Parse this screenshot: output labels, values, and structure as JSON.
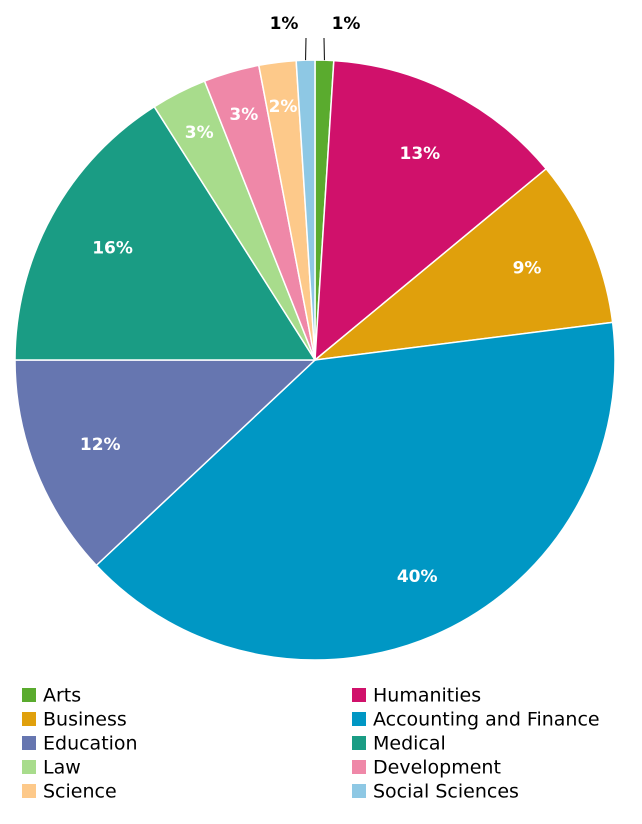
{
  "chart_data": {
    "type": "pie",
    "categories": [
      "Arts",
      "Humanities",
      "Business",
      "Accounting and Finance",
      "Education",
      "Medical",
      "Law",
      "Development",
      "Science",
      "Social Sciences"
    ],
    "values": [
      1,
      13,
      9,
      40,
      12,
      16,
      3,
      3,
      2,
      1
    ],
    "value_labels": [
      "1%",
      "13%",
      "9%",
      "40%",
      "12%",
      "16%",
      "3%",
      "3%",
      "2%",
      "1%"
    ],
    "colors": [
      "#5aab2e",
      "#d0116b",
      "#e0a00c",
      "#0097c4",
      "#6676b0",
      "#1a9c84",
      "#a8dc8c",
      "#ef88a8",
      "#fdc98a",
      "#8ec8e4"
    ],
    "legend": "bottom"
  }
}
